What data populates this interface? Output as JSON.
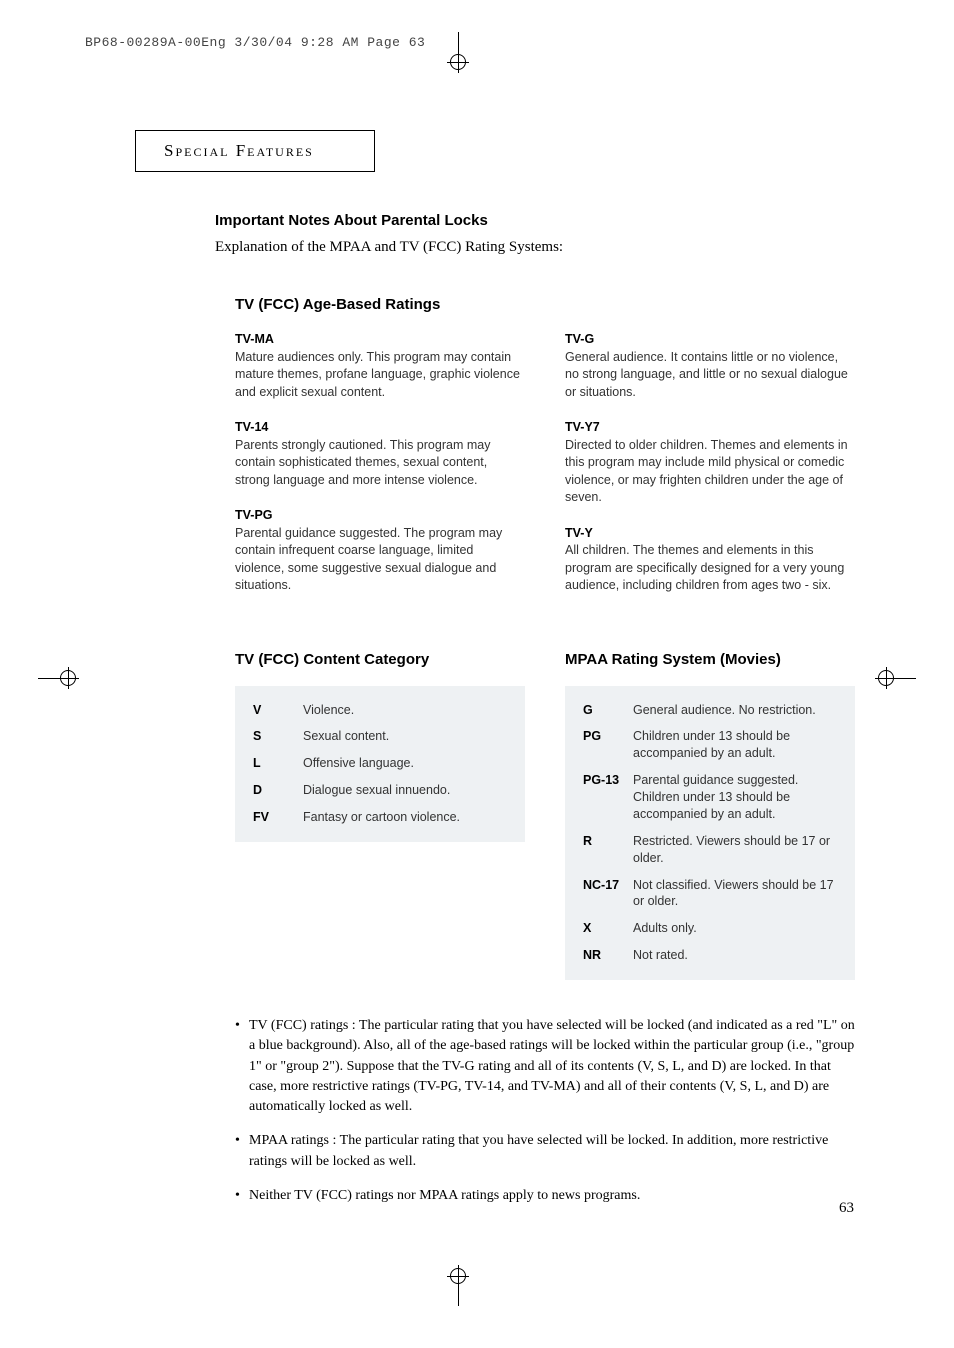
{
  "print_header": "BP68-00289A-00Eng  3/30/04  9:28 AM  Page 63",
  "section_box": "Special Features",
  "title": "Important Notes About Parental Locks",
  "subtitle": "Explanation of the MPAA and TV (FCC) Rating Systems:",
  "tv_age_heading": "TV (FCC) Age-Based Ratings",
  "tv_age": {
    "left": [
      {
        "code": "TV-MA",
        "desc": "Mature audiences only. This program may contain mature themes, profane language, graphic violence and explicit sexual content."
      },
      {
        "code": "TV-14",
        "desc": "Parents strongly cautioned. This program may contain sophisticated themes, sexual content, strong language and more intense violence."
      },
      {
        "code": "TV-PG",
        "desc": "Parental guidance suggested. The program may contain infrequent coarse language, limited violence, some suggestive sexual dialogue and situations."
      }
    ],
    "right": [
      {
        "code": "TV-G",
        "desc": "General audience. It contains little or no violence, no strong language, and little or no sexual dialogue or situations."
      },
      {
        "code": "TV-Y7",
        "desc": "Directed to older children. Themes and elements in this program may include mild physical or comedic violence, or may frighten children under the age of seven."
      },
      {
        "code": "TV-Y",
        "desc": "All children. The themes and elements in this program are specifically designed for a very young audience, including children from ages two - six."
      }
    ]
  },
  "content_cat_heading": "TV (FCC) Content Category",
  "content_cat": [
    {
      "k": "V",
      "v": "Violence."
    },
    {
      "k": "S",
      "v": "Sexual content."
    },
    {
      "k": "L",
      "v": "Offensive language."
    },
    {
      "k": "D",
      "v": "Dialogue sexual innuendo."
    },
    {
      "k": "FV",
      "v": "Fantasy or cartoon violence."
    }
  ],
  "mpaa_heading": "MPAA Rating System (Movies)",
  "mpaa": [
    {
      "k": "G",
      "v": "General audience. No restriction."
    },
    {
      "k": "PG",
      "v": "Children under 13 should be accompanied by an adult."
    },
    {
      "k": "PG-13",
      "v": "Parental guidance suggested. Children under 13 should be accompanied by an adult."
    },
    {
      "k": "R",
      "v": "Restricted. Viewers should be 17 or older."
    },
    {
      "k": "NC-17",
      "v": "Not classified. Viewers should be 17 or older."
    },
    {
      "k": "X",
      "v": "Adults only."
    },
    {
      "k": "NR",
      "v": "Not rated."
    }
  ],
  "notes": [
    "TV (FCC) ratings : The particular rating that you have selected will be locked (and indicated as a red \"L\" on a blue background). Also, all of the age-based ratings will be locked within the particular group (i.e., \"group 1\" or \"group 2\"). Suppose that the TV-G rating and all of its contents (V, S, L, and D) are locked. In that case, more restrictive ratings (TV-PG, TV-14, and TV-MA) and all of their contents (V, S, L, and D) are automatically locked as well.",
    "MPAA ratings : The particular rating that you have selected will be locked. In addition, more restrictive ratings will be locked as well.",
    "Neither TV (FCC) ratings nor MPAA ratings apply to news programs."
  ],
  "page_number": "63"
}
